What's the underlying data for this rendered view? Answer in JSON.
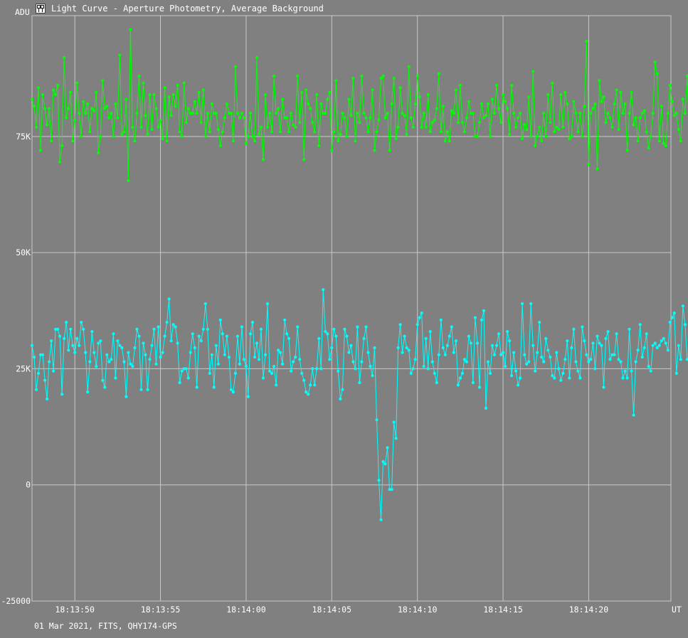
{
  "window": {
    "title": "Light Curve - Aperture Photometry, Average Background",
    "icon": "light-curve-app-icon"
  },
  "footer": {
    "text": "01 Mar 2021, FITS, QHY174-GPS"
  },
  "colors": {
    "background": "#808080",
    "grid": "#c8c8c8",
    "comparison_series": "#00ff00",
    "target_series": "#00ffff",
    "text": "#ffffff"
  },
  "chart_data": {
    "type": "line",
    "title": "Light Curve - Aperture Photometry, Average Background",
    "xlabel": "UT",
    "ylabel": "ADU",
    "ylim": [
      -25000,
      101000
    ],
    "xlim": [
      47.5,
      84.8
    ],
    "y_ticks": [
      {
        "value": 75000,
        "label": "75K"
      },
      {
        "value": 50000,
        "label": "50K"
      },
      {
        "value": 25000,
        "label": "25K"
      },
      {
        "value": 0,
        "label": "0"
      },
      {
        "value": -25000,
        "label": "-25000"
      }
    ],
    "x_ticks": [
      {
        "value": 50,
        "label": "18:13:50"
      },
      {
        "value": 55,
        "label": "18:13:55"
      },
      {
        "value": 60,
        "label": "18:14:00"
      },
      {
        "value": 65,
        "label": "18:14:05"
      },
      {
        "value": 70,
        "label": "18:14:10"
      },
      {
        "value": 75,
        "label": "18:14:15"
      },
      {
        "value": 80,
        "label": "18:14:20"
      }
    ],
    "x_ticks_note": "x values are seconds after 18:13:00 UT",
    "grid": true,
    "marker": "circle",
    "series": [
      {
        "color": "#00ff00",
        "x_start": 47.5,
        "x_step": 0.125,
        "values": [
          83000,
          81500,
          77000,
          85500,
          72000,
          84000,
          81000,
          77500,
          81000,
          74000,
          85000,
          84000,
          86000,
          69500,
          73000,
          92000,
          79000,
          81000,
          84500,
          74000,
          78500,
          86500,
          80000,
          75000,
          82500,
          80000,
          82000,
          76000,
          81000,
          80500,
          84500,
          71500,
          75000,
          87000,
          81000,
          81500,
          79000,
          80000,
          75000,
          82000,
          79000,
          92500,
          75500,
          76000,
          83000,
          65500,
          98000,
          77000,
          74000,
          80000,
          88000,
          77000,
          86500,
          79500,
          75500,
          84000,
          76500,
          84000,
          81000,
          77000,
          78500,
          74500,
          85500,
          74000,
          83500,
          79500,
          84000,
          81500,
          86000,
          76000,
          75000,
          86500,
          78000,
          81000,
          80000,
          80000,
          82500,
          80000,
          84500,
          78000,
          85000,
          75000,
          80000,
          76000,
          82000,
          80000,
          80000,
          76500,
          73000,
          76000,
          79000,
          82000,
          80000,
          80000,
          74000,
          90000,
          80000,
          79000,
          80000,
          79000,
          73500,
          75000,
          80000,
          75000,
          74000,
          92000,
          75500,
          77000,
          70000,
          84000,
          77000,
          80000,
          76000,
          88000,
          80000,
          81000,
          76000,
          83000,
          79000,
          79000,
          76000,
          80000,
          77500,
          77000,
          88000,
          78000,
          84500,
          70000,
          85000,
          82000,
          81000,
          78000,
          76000,
          84000,
          73000,
          82000,
          80000,
          80000,
          83000,
          84500,
          72000,
          76000,
          87000,
          74000,
          75500,
          80000,
          79000,
          75000,
          83000,
          79500,
          87500,
          74000,
          80000,
          78000,
          88000,
          80000,
          79000,
          76000,
          79000,
          85000,
          72000,
          76000,
          78500,
          87500,
          88000,
          79000,
          80000,
          72000,
          82000,
          87500,
          74500,
          77000,
          85500,
          80000,
          79500,
          75500,
          90000,
          79000,
          77000,
          82000,
          88000,
          83500,
          77000,
          80000,
          77000,
          84000,
          76000,
          78000,
          78500,
          81000,
          88500,
          76000,
          81500,
          74000,
          76000,
          74000,
          80500,
          80000,
          85000,
          78000,
          86000,
          78000,
          76000,
          79000,
          82500,
          80000,
          80000,
          75000,
          75000,
          78000,
          82000,
          79000,
          79500,
          82000,
          75000,
          83000,
          80000,
          86000,
          81000,
          78000,
          84000,
          82500,
          81000,
          75500,
          86000,
          80000,
          77000,
          79000,
          80000,
          74500,
          77500,
          76500,
          83500,
          75000,
          89000,
          73000,
          75000,
          77000,
          74000,
          80000,
          75000,
          84000,
          78000,
          86500,
          76000,
          77000,
          76500,
          84000,
          77000,
          84500,
          82000,
          74500,
          75000,
          82500,
          80000,
          76000,
          80000,
          75000,
          81500,
          95500,
          69000,
          80000,
          81000,
          82000,
          68000,
          87000,
          82500,
          83500,
          78000,
          80000,
          79000,
          77000,
          82000,
          85000,
          76500,
          84500,
          80000,
          82000,
          72000,
          80000,
          84500,
          77500,
          79000,
          74000,
          79000,
          80000,
          80500,
          76000,
          72500,
          75000,
          80000,
          91000,
          88500,
          74000,
          81500,
          73500,
          73000,
          80000,
          86000,
          82500,
          79500,
          80000,
          76500,
          74000,
          83000,
          80000,
          88000,
          75500,
          80000,
          77000,
          76000,
          83000,
          78000,
          75000,
          74000,
          76500,
          79000,
          84000,
          76500,
          75500,
          78000,
          90000,
          75000,
          80000,
          87000,
          80000,
          76000,
          75000,
          84000,
          75500,
          73500,
          81000,
          80000,
          82500,
          75500,
          78500,
          80000,
          88000,
          75000,
          86000,
          80500,
          70500,
          84500,
          78000,
          77000,
          64000,
          79000,
          88000,
          75000,
          81500,
          80000,
          78500,
          79000,
          84000,
          70000,
          85000,
          76000,
          80000,
          85500,
          75000,
          80000,
          75000,
          81000,
          74500,
          80000,
          84500,
          83000,
          85000,
          82000,
          78000,
          75500,
          67500,
          80000,
          76000,
          85000,
          78500,
          79000,
          88000,
          74500,
          81000,
          84500,
          80000,
          76000,
          80000,
          79000,
          79000,
          73500,
          80000,
          73500,
          74000,
          81500,
          79000,
          76000,
          80500,
          78000,
          75000,
          82500,
          80000,
          74000,
          86500,
          80000,
          78000,
          72500,
          86000,
          75000,
          87500,
          78500,
          80500,
          79500,
          79000,
          80000,
          79500,
          75500,
          79000,
          80500,
          80000,
          76000,
          81000,
          75500,
          84500,
          79000,
          77000,
          84500,
          89000,
          71500,
          78500,
          80000,
          76000,
          79000,
          80500,
          79000,
          80500,
          86000,
          82000,
          79000,
          82000,
          65500,
          75500,
          78500,
          79000,
          82000,
          78500
        ]
      },
      {
        "color": "#00ffff",
        "x_start": 47.5,
        "x_step": 0.125,
        "values": [
          30000,
          27500,
          20500,
          24000,
          28000,
          28000,
          22500,
          18500,
          26500,
          31000,
          24500,
          33500,
          33500,
          32000,
          19500,
          31500,
          35000,
          29000,
          33500,
          30000,
          28500,
          31500,
          30000,
          35000,
          33500,
          28500,
          20000,
          26500,
          33000,
          28500,
          25500,
          30500,
          31000,
          22500,
          21000,
          28000,
          26500,
          27000,
          32500,
          23000,
          31000,
          30000,
          29500,
          26500,
          19000,
          28500,
          26000,
          25500,
          29500,
          33500,
          32000,
          20500,
          30500,
          28000,
          20500,
          27000,
          30000,
          33500,
          26000,
          34000,
          27500,
          28500,
          32000,
          35000,
          40000,
          31000,
          34500,
          34000,
          30500,
          22000,
          24500,
          25000,
          25000,
          23000,
          28500,
          32500,
          29500,
          21000,
          32000,
          31000,
          33500,
          39000,
          33500,
          24000,
          28000,
          21000,
          30000,
          26000,
          35500,
          32500,
          28000,
          32000,
          27500,
          20500,
          20000,
          24000,
          32000,
          26000,
          34000,
          27000,
          25500,
          19000,
          32500,
          35000,
          27500,
          30500,
          27000,
          33500,
          23000,
          28000,
          39000,
          24500,
          24000,
          25500,
          21500,
          29000,
          28500,
          26000,
          35500,
          32500,
          31500,
          24500,
          26500,
          27500,
          34000,
          27000,
          24000,
          22500,
          20000,
          19500,
          21500,
          25000,
          21500,
          25000,
          31500,
          25000,
          42000,
          33000,
          32500,
          27000,
          29500,
          33500,
          32000,
          24500,
          18500,
          20500,
          33500,
          32000,
          28500,
          30000,
          26500,
          25000,
          34000,
          22000,
          26500,
          31500,
          34000,
          28500,
          25500,
          23500,
          29500,
          14000,
          1000,
          -7500,
          5000,
          4500,
          8000,
          -1000,
          -1000,
          13500,
          10000,
          29500,
          34500,
          28500,
          32000,
          29500,
          29000,
          24000,
          25000,
          27000,
          34500,
          36000,
          37000,
          25500,
          31500,
          25000,
          33000,
          26500,
          24000,
          22000,
          28000,
          35500,
          29500,
          28000,
          30000,
          32000,
          34000,
          28500,
          31000,
          21500,
          23000,
          24000,
          27000,
          26500,
          32000,
          30500,
          22000,
          36000,
          30500,
          21000,
          35500,
          37500,
          16500,
          26500,
          24000,
          30000,
          28000,
          30000,
          32500,
          28000,
          28500,
          25500,
          33000,
          31000,
          23500,
          28500,
          24500,
          21500,
          23000,
          39000,
          28000,
          26000,
          26500,
          39000,
          30000,
          24500,
          28500,
          35000,
          27500,
          26500,
          31500,
          29000,
          27500,
          23500,
          23000,
          28500,
          25000,
          22500,
          24000,
          27000,
          31000,
          23000,
          29500,
          33500,
          26500,
          24500,
          23000,
          34000,
          31000,
          28000,
          26500,
          27000,
          30500,
          25000,
          32000,
          30500,
          30000,
          21000,
          31500,
          33000,
          27000,
          28000,
          28000,
          32500,
          27000,
          26500,
          23000,
          24500,
          23000,
          33500,
          24500,
          15000,
          26500,
          29000,
          34500,
          27500,
          29500,
          32500,
          25500,
          24500,
          30000,
          30500,
          29500,
          30000,
          31000,
          31500,
          30500,
          29000,
          35000,
          36000,
          37000,
          24000,
          30000,
          27000,
          38500,
          34500,
          27000,
          27500,
          23000,
          20500,
          30000,
          26000,
          25500,
          32500,
          29500,
          34000,
          25500,
          33500,
          27000,
          26000,
          33500,
          41000,
          28000,
          24000,
          32500,
          33500,
          33500,
          24000,
          28500,
          26500,
          29500,
          28500,
          32000,
          22000,
          31000,
          26000,
          24500,
          33000,
          26000,
          23500,
          24500,
          31000,
          27000,
          26500,
          25000,
          18000,
          32500,
          23500,
          25000,
          26500,
          33500,
          29500,
          28000,
          24500,
          30500,
          21500,
          36500,
          24000,
          17500,
          28500,
          24000,
          36500,
          24000,
          31000,
          34000,
          34000,
          23500,
          25500,
          31000,
          25500,
          18000,
          22000,
          33000,
          30000,
          29000,
          28000,
          30000,
          31000,
          24500,
          29500,
          33000,
          33000,
          29500,
          28500,
          29500,
          27000,
          29000,
          30500,
          25000,
          23000,
          33000,
          27000,
          31000,
          31500,
          26000,
          27500,
          26000,
          27000,
          27000,
          25000,
          28500,
          33000,
          25500,
          30500,
          15000,
          33500,
          23000,
          24500,
          25000,
          27000,
          28000,
          26500,
          29500
        ]
      }
    ]
  }
}
